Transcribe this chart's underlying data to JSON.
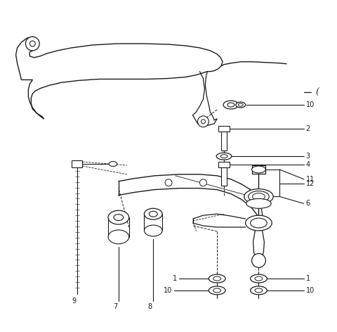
{
  "bg_color": "#ffffff",
  "line_color": "#1a1a1a",
  "fig_width": 4.8,
  "fig_height": 4.72,
  "dpi": 100
}
